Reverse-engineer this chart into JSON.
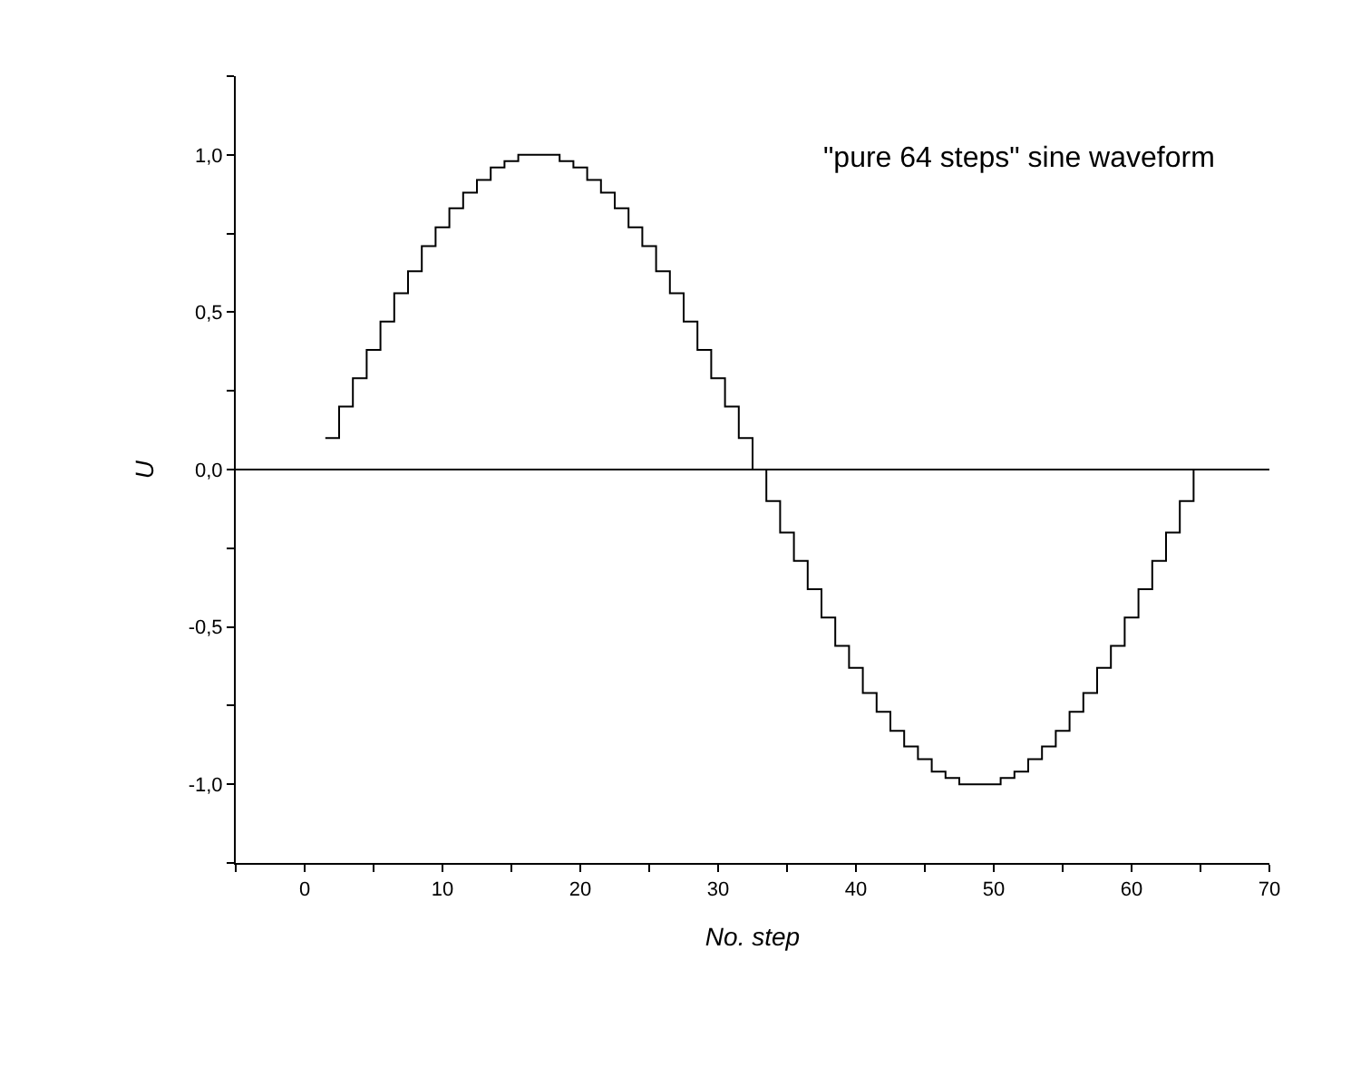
{
  "chart_data": {
    "type": "step",
    "xlabel": "No. step",
    "ylabel": "U",
    "annotations": [
      "\"pure 64 steps\" sine waveform"
    ],
    "x": [
      1.5,
      2.5,
      3.5,
      4.5,
      5.5,
      6.5,
      7.5,
      8.5,
      9.5,
      10.5,
      11.5,
      12.5,
      13.5,
      14.5,
      15.5,
      16.5,
      17.5,
      18.5,
      19.5,
      20.5,
      21.5,
      22.5,
      23.5,
      24.5,
      25.5,
      26.5,
      27.5,
      28.5,
      29.5,
      30.5,
      31.5,
      32.5,
      33.5,
      34.5,
      35.5,
      36.5,
      37.5,
      38.5,
      39.5,
      40.5,
      41.5,
      42.5,
      43.5,
      44.5,
      45.5,
      46.5,
      47.5,
      48.5,
      49.5,
      50.5,
      51.5,
      52.5,
      53.5,
      54.5,
      55.5,
      56.5,
      57.5,
      58.5,
      59.5,
      60.5,
      61.5,
      62.5,
      63.5,
      64.5
    ],
    "series": [
      {
        "color": "#000000",
        "values": [
          0.1,
          0.2,
          0.29,
          0.38,
          0.47,
          0.56,
          0.63,
          0.71,
          0.77,
          0.83,
          0.88,
          0.92,
          0.96,
          0.98,
          1.0,
          1.0,
          1.0,
          0.98,
          0.96,
          0.92,
          0.88,
          0.83,
          0.77,
          0.71,
          0.63,
          0.56,
          0.47,
          0.38,
          0.29,
          0.2,
          0.1,
          0.0,
          -0.1,
          -0.2,
          -0.29,
          -0.38,
          -0.47,
          -0.56,
          -0.63,
          -0.71,
          -0.77,
          -0.83,
          -0.88,
          -0.92,
          -0.96,
          -0.98,
          -1.0,
          -1.0,
          -1.0,
          -0.98,
          -0.96,
          -0.92,
          -0.88,
          -0.83,
          -0.77,
          -0.71,
          -0.63,
          -0.56,
          -0.47,
          -0.38,
          -0.29,
          -0.2,
          -0.1,
          0.0
        ]
      }
    ],
    "xlim": [
      -5,
      70
    ],
    "xticks": [
      {
        "value": -5,
        "label": null
      },
      0,
      {
        "value": 5,
        "label": null
      },
      10,
      {
        "value": 15,
        "label": null
      },
      20,
      {
        "value": 25,
        "label": null
      },
      30,
      {
        "value": 35,
        "label": null
      },
      40,
      {
        "value": 45,
        "label": null
      },
      50,
      {
        "value": 55,
        "label": null
      },
      60,
      {
        "value": 65,
        "label": null
      },
      70
    ],
    "ylim": [
      -1.25,
      1.25
    ],
    "yticks": [
      {
        "value": -1.25,
        "label": null
      },
      {
        "value": -1.0,
        "label": "-1,0"
      },
      {
        "value": -0.75,
        "label": null
      },
      {
        "value": -0.5,
        "label": "-0,5"
      },
      {
        "value": -0.25,
        "label": null
      },
      {
        "value": 0,
        "label": "0,0"
      },
      {
        "value": 0.25,
        "label": null
      },
      {
        "value": 0.5,
        "label": "0,5"
      },
      {
        "value": 0.75,
        "label": null
      },
      {
        "value": 1.0,
        "label": "1,0"
      },
      {
        "value": 1.25,
        "label": null
      }
    ],
    "ref_lines": [
      {
        "axis": "y",
        "value": 0,
        "color": "#000000"
      }
    ],
    "marker": "none",
    "line_style": "solid"
  }
}
